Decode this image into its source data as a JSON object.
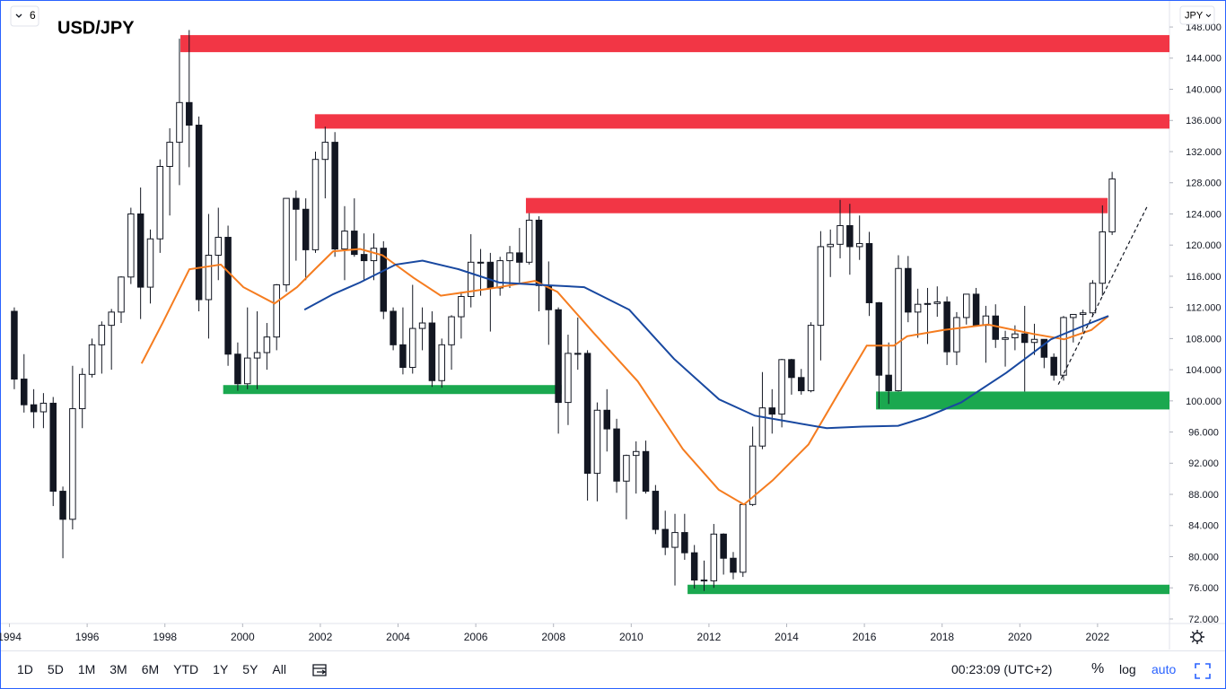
{
  "chart_data": {
    "type": "candlestick",
    "title": "USD/JPY",
    "interval_badge": "6",
    "axis_currency": "JPY",
    "x": [
      1994.125,
      1994.375,
      1994.625,
      1994.875,
      1995.125,
      1995.375,
      1995.625,
      1995.875,
      1996.125,
      1996.375,
      1996.625,
      1996.875,
      1997.125,
      1997.375,
      1997.625,
      1997.875,
      1998.125,
      1998.375,
      1998.625,
      1998.875,
      1999.125,
      1999.375,
      1999.625,
      1999.875,
      2000.125,
      2000.375,
      2000.625,
      2000.875,
      2001.125,
      2001.375,
      2001.625,
      2001.875,
      2002.125,
      2002.375,
      2002.625,
      2002.875,
      2003.125,
      2003.375,
      2003.625,
      2003.875,
      2004.125,
      2004.375,
      2004.625,
      2004.875,
      2005.125,
      2005.375,
      2005.625,
      2005.875,
      2006.125,
      2006.375,
      2006.625,
      2006.875,
      2007.125,
      2007.375,
      2007.625,
      2007.875,
      2008.125,
      2008.375,
      2008.625,
      2008.875,
      2009.125,
      2009.375,
      2009.625,
      2009.875,
      2010.125,
      2010.375,
      2010.625,
      2010.875,
      2011.125,
      2011.375,
      2011.625,
      2011.875,
      2012.125,
      2012.375,
      2012.625,
      2012.875,
      2013.125,
      2013.375,
      2013.625,
      2013.875,
      2014.125,
      2014.375,
      2014.625,
      2014.875,
      2015.125,
      2015.375,
      2015.625,
      2015.875,
      2016.125,
      2016.375,
      2016.625,
      2016.875,
      2017.125,
      2017.375,
      2017.625,
      2017.875,
      2018.125,
      2018.375,
      2018.625,
      2018.875,
      2019.125,
      2019.375,
      2019.625,
      2019.875,
      2020.125,
      2020.375,
      2020.625,
      2020.875,
      2021.125,
      2021.375,
      2021.625,
      2021.875,
      2022.125,
      2022.375
    ],
    "open": [
      111.5,
      102.8,
      99.5,
      98.6,
      99.7,
      88.4,
      84.8,
      99.0,
      103.4,
      107.2,
      109.7,
      111.4,
      115.9,
      124.0,
      114.6,
      120.8,
      130.1,
      133.2,
      138.3,
      135.4,
      113.0,
      118.7,
      121.0,
      106.0,
      102.2,
      105.5,
      106.2,
      108.2,
      114.9,
      126.0,
      124.6,
      119.4,
      131.0,
      133.2,
      119.5,
      121.8,
      118.8,
      118.0,
      119.6,
      111.5,
      107.2,
      104.3,
      109.3,
      110.0,
      102.6,
      107.2,
      110.8,
      113.4,
      117.8,
      117.8,
      114.5,
      118.0,
      119.0,
      117.8,
      123.2,
      114.8,
      111.7,
      99.8,
      106.1,
      106.1,
      90.7,
      98.8,
      96.4,
      89.7,
      93.0,
      93.5,
      88.4,
      83.5,
      81.2,
      83.1,
      80.5,
      77.0,
      76.9,
      82.9,
      79.8,
      78.0,
      86.7,
      94.2,
      99.1,
      98.3,
      105.3,
      103.0,
      101.3,
      109.7,
      119.8,
      120.1,
      122.5,
      119.8,
      120.2,
      112.6,
      103.3,
      101.3,
      117.0,
      111.4,
      112.4,
      112.5,
      112.7,
      106.3,
      110.7,
      113.7,
      109.7,
      110.9,
      107.9,
      108.1,
      108.6,
      107.5,
      107.9,
      105.6,
      103.3,
      110.7,
      111.1,
      111.3,
      115.1,
      121.7
    ],
    "high": [
      112.0,
      106.0,
      101.5,
      101.0,
      100.5,
      89.0,
      104.5,
      104.2,
      108.0,
      110.2,
      111.8,
      116.0,
      124.8,
      127.4,
      122.0,
      131.0,
      135.0,
      146.5,
      147.6,
      136.5,
      124.0,
      124.8,
      122.5,
      107.5,
      112.0,
      111.5,
      110.0,
      115.0,
      126.0,
      127.0,
      126.0,
      132.0,
      135.2,
      134.5,
      125.0,
      126.0,
      121.5,
      121.5,
      120.5,
      112.0,
      112.0,
      114.9,
      112.0,
      111.5,
      108.0,
      111.0,
      114.0,
      121.4,
      119.5,
      119.0,
      118.5,
      119.9,
      122.2,
      124.1,
      123.7,
      117.9,
      112.0,
      108.5,
      110.7,
      106.5,
      99.8,
      101.5,
      97.7,
      93.1,
      94.8,
      94.9,
      89.2,
      85.9,
      85.5,
      85.5,
      81.5,
      79.5,
      84.2,
      83.0,
      80.6,
      86.8,
      96.7,
      103.7,
      101.5,
      105.4,
      105.4,
      104.1,
      110.1,
      121.8,
      122.0,
      125.8,
      125.3,
      123.8,
      121.7,
      112.7,
      107.5,
      118.7,
      118.6,
      114.4,
      114.5,
      114.7,
      113.4,
      111.4,
      113.7,
      114.5,
      112.2,
      112.4,
      109.0,
      109.7,
      112.2,
      109.9,
      107.9,
      106.1,
      110.9,
      111.0,
      111.7,
      115.5,
      125.1,
      129.4
    ],
    "low": [
      101.5,
      98.5,
      96.5,
      96.5,
      86.5,
      79.8,
      83.5,
      96.5,
      103.0,
      103.5,
      104.0,
      110.0,
      115.0,
      110.5,
      112.5,
      119.0,
      123.8,
      127.7,
      130.0,
      111.5,
      108.0,
      115.5,
      104.5,
      101.3,
      101.5,
      101.5,
      104.0,
      106.5,
      114.0,
      118.0,
      115.5,
      119.0,
      126.0,
      118.5,
      115.5,
      118.5,
      115.5,
      115.5,
      110.5,
      106.5,
      103.4,
      103.5,
      106.5,
      101.8,
      101.7,
      104.0,
      108.0,
      112.0,
      113.5,
      108.9,
      113.5,
      114.5,
      115.2,
      117.5,
      111.5,
      107.2,
      95.8,
      96.9,
      104.0,
      87.2,
      87.1,
      93.5,
      88.2,
      84.8,
      88.1,
      88.1,
      82.9,
      80.2,
      76.3,
      79.6,
      75.9,
      75.6,
      76.0,
      77.7,
      77.1,
      77.4,
      86.5,
      93.8,
      95.8,
      96.6,
      100.8,
      100.8,
      101.1,
      105.2,
      115.9,
      118.3,
      116.2,
      118.1,
      110.9,
      99.0,
      99.6,
      101.2,
      110.1,
      108.1,
      107.3,
      110.8,
      104.6,
      104.6,
      109.8,
      109.8,
      104.9,
      106.8,
      104.4,
      106.5,
      101.2,
      105.9,
      104.2,
      102.6,
      102.6,
      107.5,
      108.7,
      110.8,
      113.5,
      121.3
    ],
    "close": [
      102.8,
      99.5,
      98.6,
      99.7,
      88.4,
      84.8,
      99.0,
      103.4,
      107.2,
      109.7,
      111.4,
      115.9,
      124.0,
      114.6,
      120.8,
      130.1,
      133.2,
      138.3,
      135.4,
      113.0,
      118.7,
      121.0,
      106.0,
      102.2,
      105.5,
      106.2,
      108.2,
      114.9,
      126.0,
      124.6,
      119.4,
      131.0,
      133.2,
      119.5,
      121.8,
      118.8,
      118.0,
      119.6,
      111.5,
      107.2,
      104.3,
      109.3,
      110.0,
      102.6,
      107.2,
      110.8,
      113.4,
      117.8,
      117.8,
      114.5,
      118.0,
      119.0,
      117.8,
      123.2,
      114.8,
      111.7,
      99.8,
      106.1,
      106.1,
      90.7,
      98.8,
      96.4,
      89.7,
      93.0,
      93.5,
      88.4,
      83.5,
      81.2,
      83.1,
      80.5,
      77.0,
      76.9,
      82.9,
      79.8,
      78.0,
      86.7,
      94.2,
      99.1,
      98.3,
      105.3,
      103.0,
      101.3,
      109.7,
      119.8,
      120.1,
      122.5,
      119.8,
      120.2,
      112.6,
      103.3,
      101.3,
      117.0,
      111.4,
      112.4,
      112.5,
      112.7,
      106.3,
      110.7,
      113.7,
      109.7,
      110.9,
      107.9,
      108.1,
      108.6,
      107.5,
      107.9,
      105.6,
      103.3,
      110.7,
      111.1,
      111.3,
      115.1,
      121.7,
      128.5
    ],
    "up_color": "#ffffff",
    "down_color": "#131722",
    "wick_color": "#131722",
    "overlays": [
      {
        "color": "#f57c1f",
        "x": [
          1997.4,
          1997.94,
          1998.63,
          1999.44,
          2000.02,
          2000.82,
          2001.4,
          2001.86,
          2002.33,
          2003.02,
          2003.6,
          2004.4,
          2005.1,
          2005.79,
          2006.6,
          2007.52,
          2008.1,
          2009.02,
          2010.17,
          2011.33,
          2012.25,
          2012.9,
          2013.64,
          2014.56,
          2015.37,
          2016.06,
          2016.76,
          2017.1,
          2018.03,
          2019.18,
          2020.34,
          2021.14,
          2021.84,
          2022.28
        ],
        "values": [
          104.8,
          110.0,
          116.9,
          117.5,
          114.6,
          112.5,
          114.6,
          116.9,
          119.2,
          119.5,
          118.7,
          115.8,
          113.5,
          114.0,
          114.6,
          115.4,
          114.0,
          108.8,
          102.5,
          93.8,
          88.6,
          86.7,
          89.8,
          94.4,
          101.3,
          107.1,
          107.1,
          108.3,
          109.1,
          109.8,
          108.6,
          107.9,
          109.1,
          110.9
        ]
      },
      {
        "color": "#1848a0",
        "x": [
          2001.59,
          2002.33,
          2003.02,
          2003.94,
          2004.63,
          2005.56,
          2006.6,
          2007.64,
          2008.79,
          2009.95,
          2011.1,
          2012.26,
          2013.18,
          2014.1,
          2015.03,
          2015.95,
          2016.87,
          2017.57,
          2018.49,
          2019.65,
          2020.8,
          2021.72,
          2022.28
        ],
        "values": [
          111.7,
          113.7,
          115.2,
          117.5,
          118.0,
          116.9,
          115.2,
          114.9,
          114.6,
          111.7,
          105.4,
          100.2,
          98.1,
          97.3,
          96.5,
          96.7,
          96.8,
          97.9,
          99.8,
          103.6,
          107.9,
          109.8,
          110.9
        ]
      }
    ],
    "zones": [
      {
        "color": "#f23645",
        "x": [
          1998.4,
          2023.85
        ],
        "y": [
          144.77,
          146.96
        ]
      },
      {
        "color": "#f23645",
        "x": [
          2001.86,
          2023.85
        ],
        "y": [
          134.95,
          136.8
        ]
      },
      {
        "color": "#f23645",
        "x": [
          2007.29,
          2022.26
        ],
        "y": [
          124.09,
          126.05
        ]
      },
      {
        "color": "#1aa84f",
        "x": [
          1999.5,
          2008.21
        ],
        "y": [
          100.88,
          102.03
        ]
      },
      {
        "color": "#1aa84f",
        "x": [
          2016.3,
          2023.85
        ],
        "y": [
          98.9,
          101.2
        ]
      },
      {
        "color": "#1aa84f",
        "x": [
          2011.45,
          2023.85
        ],
        "y": [
          75.2,
          76.4
        ]
      }
    ],
    "trendline": {
      "color": "#131722",
      "x": [
        2020.99,
        2023.3
      ],
      "y": [
        102.1,
        125.2
      ]
    },
    "xlim": [
      1993.78,
      2023.85
    ],
    "xticks": [
      1994,
      1996,
      1998,
      2000,
      2002,
      2004,
      2006,
      2008,
      2010,
      2012,
      2014,
      2016,
      2018,
      2020,
      2022
    ],
    "ylim": [
      71.42,
      151.35
    ],
    "yticks": [
      {
        "value": 72,
        "label": "72.000"
      },
      {
        "value": 76,
        "label": "76.000"
      },
      {
        "value": 80,
        "label": "80.000"
      },
      {
        "value": 84,
        "label": "84.000"
      },
      {
        "value": 88,
        "label": "88.000"
      },
      {
        "value": 92,
        "label": "92.000"
      },
      {
        "value": 96,
        "label": "96.000"
      },
      {
        "value": 100,
        "label": "100.000"
      },
      {
        "value": 104,
        "label": "104.000"
      },
      {
        "value": 108,
        "label": "108.000"
      },
      {
        "value": 112,
        "label": "112.000"
      },
      {
        "value": 116,
        "label": "116.000"
      },
      {
        "value": 120,
        "label": "120.000"
      },
      {
        "value": 124,
        "label": "124.000"
      },
      {
        "value": 128,
        "label": "128.000"
      },
      {
        "value": 132,
        "label": "132.000"
      },
      {
        "value": 136,
        "label": "136.000"
      },
      {
        "value": 140,
        "label": "140.000"
      },
      {
        "value": 144,
        "label": "144.000"
      },
      {
        "value": 148,
        "label": "148.000"
      }
    ],
    "log_scale": false,
    "grid": false
  },
  "toolbar": {
    "ranges": [
      "1D",
      "5D",
      "1M",
      "3M",
      "6M",
      "YTD",
      "1Y",
      "5Y",
      "All"
    ],
    "clock": "00:23:09 (UTC+2)",
    "scale_options": [
      "%",
      "log",
      "auto"
    ]
  }
}
